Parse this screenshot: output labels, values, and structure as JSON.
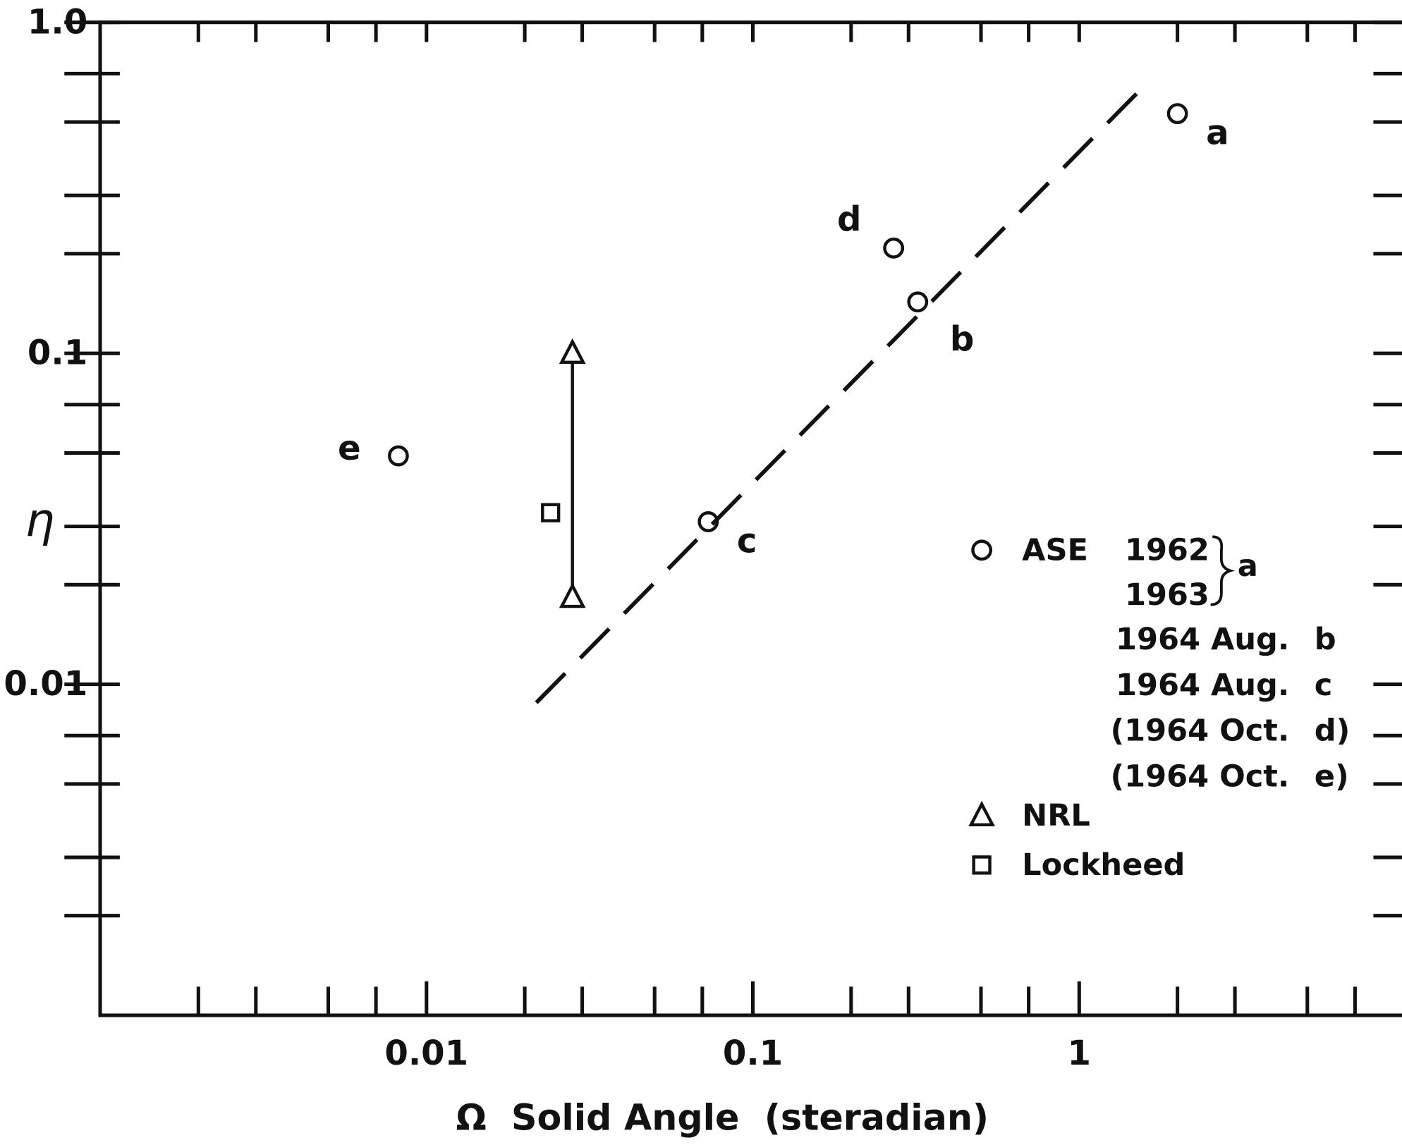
{
  "chart_data": {
    "type": "scatter",
    "xlabel": "Ω  Solid Angle  (steradian)",
    "ylabel": "η",
    "xscale": "log",
    "yscale": "log",
    "xlim": [
      0.001,
      10
    ],
    "ylim": [
      0.001,
      1
    ],
    "xticks": [
      0.01,
      0.1,
      1
    ],
    "yticks": [
      0.01,
      0.1,
      {
        "value": 1,
        "label": "1.0"
      }
    ],
    "xminor_ticks": [
      0.002,
      0.003,
      0.005,
      0.007,
      0.02,
      0.03,
      0.05,
      0.07,
      0.2,
      0.3,
      0.5,
      0.7,
      2,
      3,
      5,
      7
    ],
    "yminor_ticks": [
      0.002,
      0.003,
      0.005,
      0.007,
      0.02,
      0.03,
      0.05,
      0.07,
      0.2,
      0.3,
      0.5,
      0.7
    ],
    "legend_loc": "lower right",
    "series": [
      {
        "name": "ASE",
        "marker": "circle",
        "color": "#111111",
        "x": [
          2.0,
          0.32,
          0.073,
          0.27,
          0.0082
        ],
        "y": [
          0.53,
          0.143,
          0.031,
          0.208,
          0.049
        ],
        "labels": [
          "a",
          "b",
          "c",
          "d",
          "e"
        ]
      },
      {
        "name": "NRL",
        "marker": "triangle",
        "color": "#111111",
        "connected": true,
        "x": [
          0.028,
          0.028
        ],
        "y": [
          0.1,
          0.0183
        ]
      },
      {
        "name": "Lockheed",
        "marker": "square",
        "color": "#111111",
        "x": [
          0.024
        ],
        "y": [
          0.033
        ]
      },
      {
        "style": "dashed",
        "color": "#111111",
        "x": [
          0.0217,
          1.55
        ],
        "y": [
          0.0088,
          0.63
        ]
      }
    ],
    "legend": {
      "years": [
        "1962",
        "1963"
      ],
      "tag": "a",
      "entries": [
        {
          "label": "1964 Aug.",
          "tag": "b"
        },
        {
          "label": "1964 Aug.",
          "tag": "c"
        },
        {
          "label": "(1964 Oct.",
          "tag": "d)"
        },
        {
          "label": "(1964 Oct.",
          "tag": "e)"
        }
      ]
    }
  }
}
